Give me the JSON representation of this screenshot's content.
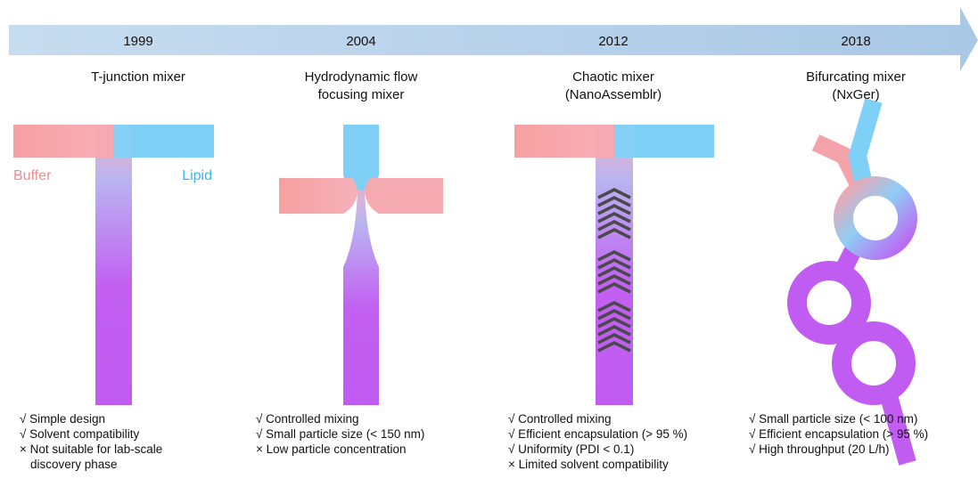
{
  "columns": [
    {
      "year": "1999",
      "title": [
        "T-junction mixer"
      ],
      "inlets": [
        "Buffer",
        "Lipid"
      ],
      "points": [
        [
          "√ Simple design"
        ],
        [
          "√ Solvent compatibility"
        ],
        [
          "× Not suitable for lab-scale",
          "discovery phase"
        ]
      ]
    },
    {
      "year": "2004",
      "title": [
        "Hydrodynamic flow",
        "focusing mixer"
      ],
      "points": [
        [
          "√ Controlled mixing"
        ],
        [
          "√ Small particle size (< 150 nm)"
        ],
        [
          "× Low particle concentration"
        ]
      ]
    },
    {
      "year": "2012",
      "title": [
        "Chaotic mixer",
        "(NanoAssemblr)"
      ],
      "points": [
        [
          "√ Controlled mixing"
        ],
        [
          "√ Efficient encapsulation (> 95 %)"
        ],
        [
          "√ Uniformity (PDI < 0.1)"
        ],
        [
          "× Limited solvent compatibility"
        ]
      ]
    },
    {
      "year": "2018",
      "title": [
        "Bifurcating mixer",
        "(NxGer)"
      ],
      "points": [
        [
          "√ Small particle size (< 100 nm)"
        ],
        [
          "√ Efficient encapsulation (> 95 %)"
        ],
        [
          "√ High throughput (20 L/h)"
        ]
      ]
    }
  ]
}
